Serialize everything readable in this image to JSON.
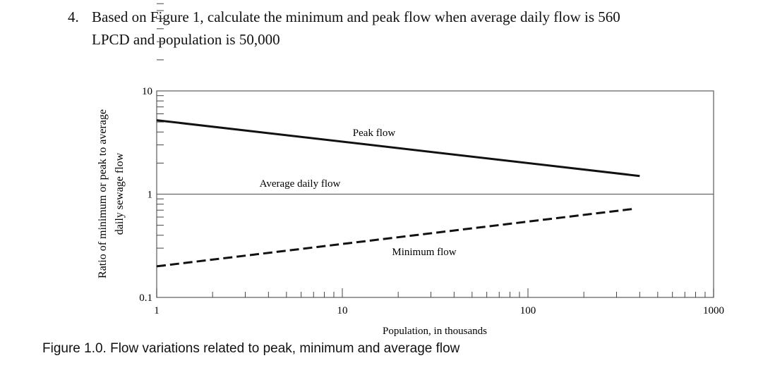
{
  "question": {
    "number": "4.",
    "line1": "Based on Figure 1, calculate the minimum and peak flow when average daily flow is 560",
    "line2": "LPCD and population is 50,000"
  },
  "caption": "Figure 1.0.  Flow variations related to peak, minimum and average flow",
  "chart_data": {
    "type": "line",
    "xlabel": "Population, in thousands",
    "ylabel_line1": "Ratio of minimum or peak to average",
    "ylabel_line2": "daily sewage flow",
    "xscale": "log",
    "yscale": "log",
    "xlim": [
      1,
      1000
    ],
    "ylim": [
      0.1,
      10
    ],
    "xticks": [
      {
        "v": 1,
        "label": "1"
      },
      {
        "v": 10,
        "label": "10"
      },
      {
        "v": 100,
        "label": "100"
      },
      {
        "v": 1000,
        "label": "1000"
      }
    ],
    "yticks": [
      {
        "v": 0.1,
        "label": "0.1"
      },
      {
        "v": 1,
        "label": "1"
      },
      {
        "v": 10,
        "label": "10"
      }
    ],
    "grid": false,
    "series": [
      {
        "name": "Peak flow",
        "style": "solid",
        "x": [
          1,
          400
        ],
        "y": [
          5.2,
          1.5
        ]
      },
      {
        "name": "Average daily flow",
        "style": "solid-thin",
        "x": [
          1,
          1000
        ],
        "y": [
          1,
          1
        ]
      },
      {
        "name": "Minimum flow",
        "style": "dashed",
        "x": [
          1,
          370
        ],
        "y": [
          0.2,
          0.72
        ]
      }
    ]
  }
}
